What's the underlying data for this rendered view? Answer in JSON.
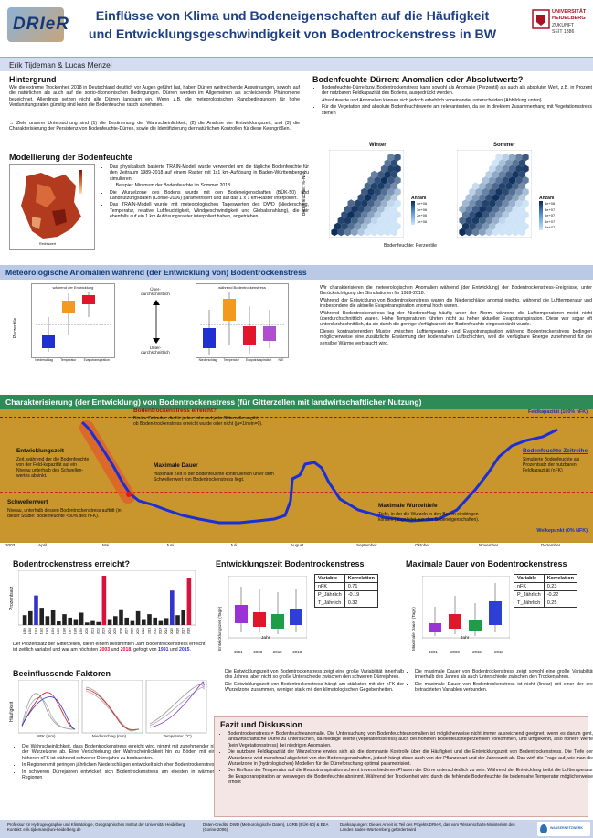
{
  "header": {
    "logo_text": "DRIeR",
    "title_line1": "Einflüsse von Klima und Bodeneigenschaften auf die Häufigkeit",
    "title_line2": "und Entwicklungsgeschwindigkeit von Bodentrockenstress in BW",
    "uni_line1": "UNIVERSITÄT",
    "uni_line2": "HEIDELBERG",
    "uni_line3": "ZUKUNFT",
    "uni_line4": "SEIT 1386",
    "authors": "Erik Tijdeman & Lucas Menzel"
  },
  "hintergrund": {
    "heading": "Hintergrund",
    "p1": "Wie die extreme Trockenheit 2018 in Deutschland deutlich vor Augen geführt hat, haben Dürren weitreichende Auswirkungen, sowohl auf die natürlichen als auch auf die sozio-ökonomischen Bedingungen. Dürren werden im Allgemeinen als schleichende Phänomene bezeichnet. Allerdings setzen nicht alle Dürren langsam ein. Wenn z.B. die meteorologischen Randbedingungen für hohe Verdunstungsraten günstig sind kann die Bodenfeuchte rasch abnehmen.",
    "p2": "→ Ziele unserer Untersuchung sind (1) die Bestimmung der Wahrscheinlichkeit, (2) die Analyse der Entwicklungszeit, und (3) die Charakterisierung der Persistenz von Bodenfeuchte-Dürren, sowie die Identifizierung der natürlichen Kontrollen für diese Kenngrößen."
  },
  "modellierung": {
    "heading": "Modellierung der Bodenfeuchte",
    "b1": "Das physikalisch basierte TRAIN-Modell wurde verwendet um die tägliche Bodenfeuchte für den Zeitraum 1989-2018 auf einem Raster mit 1x1 km-Auflösung in Baden-Württemberg zu simulieren.",
    "b2": "← Beispiel:    Minimum der Bodenfeuchte im Sommer 2018",
    "b3": "Die Wurzelzone des Bodens wurde mit den Bodeneigenschaften (BÜK-50) und Landnutzungsdaten (Corine-2006) parametrisiert und auf das 1 x 1 km-Raster interpoliert.",
    "b4": "Das TRAIN-Modell wurde mit meteorologischen Tageswerten des DWD (Niederschlag, Temperatur, relative Luftfeuchtigkeit, Windgeschwindigkeit und Globalstrahlung), die wir ebenfalls auf ein 1 km Auflösungsraster interpoliert haben, angetrieben.",
    "map_legend": [
      "0",
      "20",
      "40",
      "60",
      "80",
      "100",
      "Nicht/Wald"
    ],
    "map_xlabel": "Rechtswert",
    "map_ylabel": "Hochwert"
  },
  "anomalien": {
    "heading": "Bodenfeuchte-Dürren: Anomalien oder Absolutwerte?",
    "b1": "Bodenfeuchte-Dürre bzw. Bodentrockenstress kann sowohl als Anomalie (Perzentil) als auch als absoluter Wert, z.B. in Prozent der nutzbaren Feldkapazität des Bodens, ausgedrückt werden.",
    "b2": "Absolutwerte und Anomalien können sich jedoch erheblich voneinander unterscheiden (Abbildung unten).",
    "b3": "Für die Vegetation sind absolute Bodenfeuchtewerte am relevantesten, da sie in direktem Zusammenhang mit Vegetationsstress stehen",
    "winter_title": "Winter",
    "sommer_title": "Sommer",
    "ylabel": "Bodenfeuchte: %-NFK",
    "xlabel": "Bodenfeuchte: Perzentile",
    "legend_title": "Anzahl",
    "legend_winter": [
      "4e+06",
      "3e+06",
      "2e+06",
      "1e+06"
    ],
    "legend_sommer": [
      "1e+08",
      "8e+07",
      "6e+07",
      "4e+07",
      "2e+07"
    ]
  },
  "meteo": {
    "heading": "Meteorologische Anomalien während (der Entwicklung von) Bodentrockenstress",
    "chart1_title": "während der Entwicklung",
    "chart2_title": "während Bodentrockenstress",
    "ylabel": "Perzentile",
    "xlabels": [
      "Niederschlag",
      "Temperatur",
      "Evapotranspiration",
      "N-E"
    ],
    "mid_top": "Über-durchschnittlich",
    "mid_bottom": "Unter-durchschnittlich",
    "b1": "Wir charakterisieren die meteorologischen Anomalien während (der Entwicklung) der Bodentrockenstress-Ereignisse, unter Berücksichtigung der Simulationen für 1989-2018.",
    "b2": "Während der Entwicklung von Bodentrockenstress waren die Niederschläge anomal niedrig, während die Lufttemperatur und insbesondere die aktuelle Evapotranspiration anomal hoch waren.",
    "b3": "Während Bodentrockenstress lag der Niederschlag häufig unter der Norm, während die Lufttemperaturen meist nicht überdurchschnittlich waren. Hohe Temperaturen führten nicht zu hoher aktueller Evapotranspiration. Diese war sogar oft unterdurchschnittlich, da sie durch die geringe Verfügbarkeit der Bodenfeuchte eingeschränkt wurde.",
    "b4": "Dieses kontrastierenden Muster zwischen Lufttemperatur- und Evapotranspiration während Bodentrockenstress bedingen möglicherweise eine zusätzliche Erwärmung der bodennahen Luftschichten, weil die verfügbare Energie zunehmend für die sensible Wärme verbraucht wird."
  },
  "charakterisierung": {
    "heading": "Charakterisierung (der Entwicklung) von Bodentrockenstress (für Gitterzellen mit landwirtschaftlicher Nutzung)",
    "feldkap": "Feldkapazität (100% nFK)",
    "welkepunkt": "Welkepunkt (0% NFK)",
    "erreicht_title": "Bodentrockenstress erreicht?",
    "erreicht_text": "Binäre Zeitreihe, die für jedes Jahr und jede Gitterzelle angibt, ob Boden-trockenstress erreicht wurde oder nicht (ja=1/nein=0).",
    "entwicklungszeit_title": "Entwicklungszeit",
    "entwicklungszeit_text": "Zeit, während der die Bodenfeuchte von der Feld-kapazität auf ein Niveau unterhalb des Schwellen-wertes absinkt.",
    "dauer_title": "Maximale Dauer",
    "dauer_text": "maximale Zeit in der Bodenfeuchte kontinuierlich unter dem Schwellenwert von Bodentrockenstress liegt.",
    "schwelle_title": "Schwellenwert",
    "schwelle_text": "Niveau, unterhalb dessen Bodentrockenstress auftritt (in dieser Studie: Bodenfeuchte <30% des nFK).",
    "zeitreihe_title": "Bodenfeuchte Zeitreihe",
    "zeitreihe_text": "Simulierte Bodenfeuchte als Prozentsatz der nutzbaren Feldkapazität (nFK)",
    "wurzeltiefe_title": "Maximale Wurzeltiefe",
    "wurzeltiefe_text": "Tiefe, in der die Wurzeln in den Boden eindringen können (abgeleitet aus den Bodeneigenschaften).",
    "year": "2003",
    "months": [
      "April",
      "Mai",
      "Juni",
      "Juli",
      "August",
      "September",
      "Oktober",
      "November",
      "Dezember"
    ]
  },
  "erreicht": {
    "heading": "Bodentrockenstress erreicht?",
    "ylabel": "Prozentsatz",
    "text": "Der Prozentsatz der Gitterzellen, die in einem bestimmten Jahr Bodentrockenstress erreicht, ist zeitlich variabel und war am höchsten 2003 und 2018, gefolgt von 1991 und 2015."
  },
  "chart_data": {
    "type": "bar",
    "categories": [
      "1989",
      "1990",
      "1991",
      "1992",
      "1993",
      "1994",
      "1995",
      "1996",
      "1997",
      "1998",
      "1999",
      "2000",
      "2001",
      "2002",
      "2003",
      "2004",
      "2005",
      "2006",
      "2007",
      "2008",
      "2009",
      "2010",
      "2011",
      "2012",
      "2013",
      "2014",
      "2015",
      "2016",
      "2017",
      "2018"
    ],
    "values": [
      20,
      28,
      60,
      35,
      18,
      30,
      8,
      22,
      15,
      12,
      25,
      5,
      10,
      6,
      100,
      12,
      18,
      32,
      15,
      10,
      28,
      12,
      22,
      15,
      10,
      14,
      70,
      20,
      30,
      95
    ],
    "highlight": {
      "2003": "#d8123a",
      "2018": "#d8123a",
      "1991": "#3333cc",
      "2015": "#3333cc"
    },
    "ylabel": "Prozentsatz"
  },
  "faktoren": {
    "heading": "Beeinflussende Faktoren",
    "ylabel": "Häufigkeit",
    "xlabels": [
      "NFK (mm)",
      "Niederschlag (mm)",
      "Temperatur (°C)"
    ],
    "b1": "Die Wahrscheinlichkeit, dass Bodentrockenstress erreicht wird, nimmt mit zunehmender nFK der Wurzelzone ab. Eine Verschiebung der Wahrscheinlichkeit hin zu Böden mit einer höheren nFK ist während schwerer Dürrejahre zu beobachten.",
    "b2": "In Regionen mit geringen jährlichen Niederschlägen entwickelt sich eher Bodentrockenstress",
    "b3": "In schweren Dürrejahren entwickelt sich Bodentrockenstress am ehesten in wärmeren Regionen"
  },
  "entwicklungszeit": {
    "heading": "Entwicklungszeit Bodentrockenstress",
    "ylabel": "Entwicklungszeit (Tage)",
    "xlabels": [
      "1991",
      "2003",
      "2015",
      "2018"
    ],
    "xtitle": "Jahr",
    "table": {
      "h1": "Variable",
      "h2": "Korrelation",
      "rows": [
        [
          "nFK",
          "0.71"
        ],
        [
          "P_Jährlich",
          "-0.19"
        ],
        [
          "T_Jährlich",
          "0.32"
        ]
      ]
    },
    "b1": "Die Entwicklungszeit von Bodentrockenstress zeigt eine große Variabilität innerhalb des Jahres, aber nicht so große Unterschiede zwischen den schweren Dürrejahren.",
    "b2": "Die Entwicklungszeit von Bodentrockenstress hängt am stärksten mit der nFK der Wurzelzone zusammen, weniger stark mit den klimatologischen Gegebenheiten."
  },
  "dauer": {
    "heading": "Maximale Dauer von Bodentrockenstress",
    "ylabel": "Maximale Dauer (Tage)",
    "xlabels": [
      "1991",
      "2003",
      "2015",
      "2018"
    ],
    "xtitle": "Jahr",
    "table": {
      "h1": "Variable",
      "h2": "Korrelation",
      "rows": [
        [
          "nFK",
          "0.23"
        ],
        [
          "P_Jährlich",
          "-0.22"
        ],
        [
          "T_Jährlich",
          "0.25"
        ]
      ]
    },
    "b1": "Die maximale Dauer von Bodentrockenstress zeigt sowohl eine große Variabilität innerhalb des Jahres als auch Unterschiede zwischen den Trockenjahren.",
    "b2": "Die maximale Dauer von Bodentrockenstress ist nicht (linear) mit einer der drei betrachteten Variablen verbunden."
  },
  "fazit": {
    "heading": "Fazit und Diskussion",
    "b1": "Bodentrockenstress ≠ Bodenfeuchteanomalie. Die Untersuchung von Bodenfeuchteanomalien ist möglicherweise nicht immer ausreichend geeignet, wenn es darum geht, landwirtschaftliche Dürre zu untersuchen, da niedrige Werte (Vegetationsstress) auch bei höheren Bodenfeuchteperzentilen vorkommen, und umgekehrt, also höhere Werte (kein Vegetationsstress) bei niedrigen Anomalien.",
    "b2": "Die nutzbare Feldkapazität der Wurzelzone erwies sich als die dominante Kontrolle über die Häufigkeit und die Entwicklungszeit von Bodentrockenstress. Die Tiefe der Wurzelzone wird manchmal abgeleitet von den Bodeneigenschaften, jedoch hängt diese auch von der Pflanzenart und der Jahreszeit ab. Das wirft die Frage auf, wie man die Wurzelzone in (hydrologischen) Modellen für die Dürreforschung optimal parametrisiert.",
    "b3": "Der Einfluss der Temperatur auf die Evapotranspiration scheint in verschiedenen Phasen der Dürre unterschiedlich zu sein. Während der Entwicklung treibt die Lufttemperatur die Evapotranspiration an weswegen die Bodenfeuchte abnimmt. Während der Trockenheit wird durch die fehlende Bodenfeuchte die bodennahe Temperatur möglicherweise erhöht"
  },
  "footer": {
    "c1": "Professur für Hydrogeographie und Klimatologie, Geographisches Institut der Universität Heidelberg",
    "c1b": "Kontakt: erik.tijdeman@uni-heidelberg.de",
    "c2": "Daten-Credits: DWD (Meteorologische Daten), LGRB (BÜK-50) & EEA (Corine-2006)",
    "c3": "Danksagungen: Dieses Arbeit ist Teil des Projekts DRIeR, das vom Wissenschafts-Ministerium des Landes Baden-Württemberg gefördert wird",
    "logo2": "WASSERNETZWERK"
  }
}
